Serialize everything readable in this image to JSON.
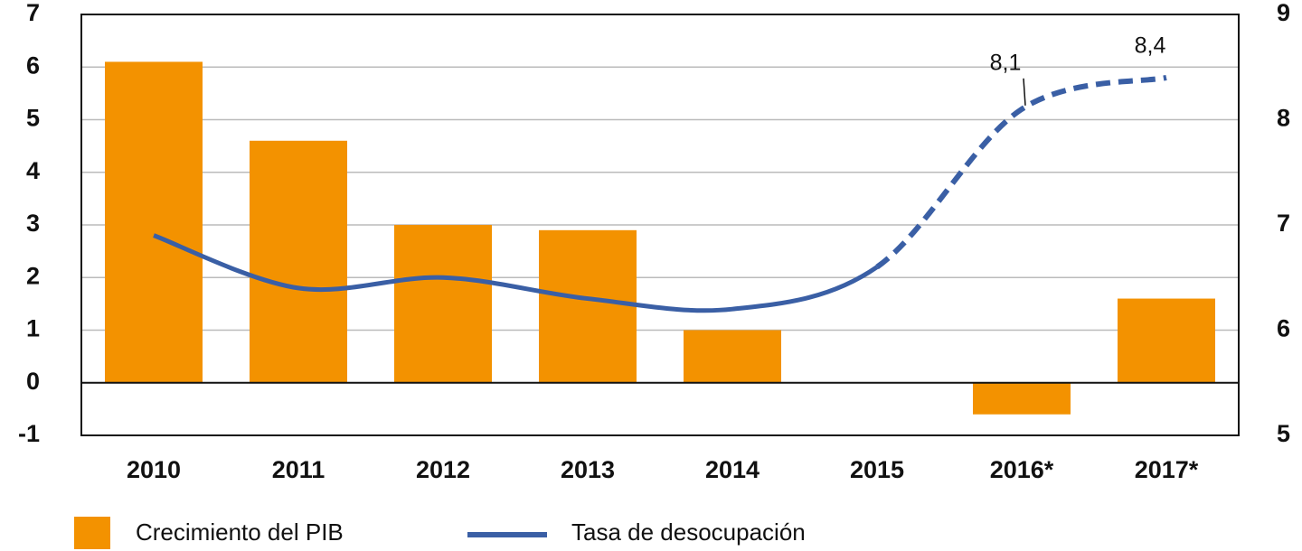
{
  "chart_data": {
    "type": "bar_line",
    "categories": [
      "2010",
      "2011",
      "2012",
      "2013",
      "2014",
      "2015",
      "2016*",
      "2017*"
    ],
    "series": [
      {
        "name": "Crecimiento del PIB",
        "color": "#f39200",
        "values": [
          6.1,
          4.6,
          3.0,
          2.9,
          1.0,
          0,
          -0.6,
          1.6
        ]
      },
      {
        "name": "Tasa de desocupación",
        "color": "#3a5fa5",
        "axis": "y2",
        "type": "line",
        "values": [
          6.9,
          6.4,
          6.5,
          6.3,
          6.2,
          6.6,
          8.1,
          8.4
        ],
        "value_labels": [
          null,
          null,
          null,
          null,
          null,
          null,
          "8,1",
          "8,4"
        ],
        "dashed_from": 5
      }
    ],
    "ylim": [
      -1,
      7
    ],
    "yticks": [
      -1,
      0,
      1,
      2,
      3,
      4,
      5,
      6,
      7
    ],
    "y2lim": [
      5,
      9
    ],
    "y2ticks": [
      5,
      6,
      7,
      8,
      9
    ],
    "grid": true,
    "legend": "bottom"
  }
}
